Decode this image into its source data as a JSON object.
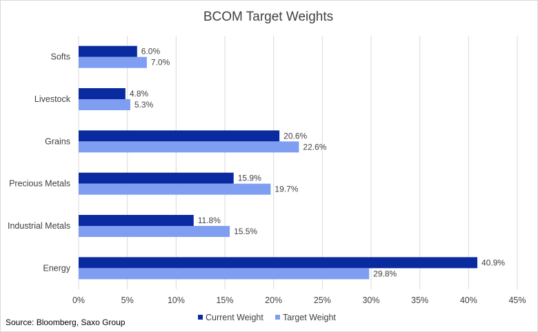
{
  "chart_data": {
    "type": "bar",
    "orientation": "horizontal",
    "title": "BCOM Target Weights",
    "categories": [
      "Softs",
      "Livestock",
      "Grains",
      "Precious Metals",
      "Industrial Metals",
      "Energy"
    ],
    "series": [
      {
        "name": "Current Weight",
        "values": [
          6.0,
          4.8,
          20.6,
          15.9,
          11.8,
          40.9
        ],
        "color": "#0a2aa0"
      },
      {
        "name": "Target Weight",
        "values": [
          7.0,
          5.3,
          22.6,
          19.7,
          15.5,
          29.8
        ],
        "color": "#7f9ef2"
      }
    ],
    "data_labels": [
      [
        "6.0%",
        "4.8%",
        "20.6%",
        "15.9%",
        "11.8%",
        "40.9%"
      ],
      [
        "7.0%",
        "5.3%",
        "22.6%",
        "19.7%",
        "15.5%",
        "29.8%"
      ]
    ],
    "xlim": [
      0,
      45
    ],
    "xticks": [
      0,
      5,
      10,
      15,
      20,
      25,
      30,
      35,
      40,
      45
    ],
    "xtick_labels": [
      "0%",
      "5%",
      "10%",
      "15%",
      "20%",
      "25%",
      "30%",
      "35%",
      "40%",
      "45%"
    ],
    "xlabel": "",
    "ylabel": "",
    "grid": "vertical",
    "legend_position": "bottom",
    "source": "Source: Bloomberg, Saxo Group"
  }
}
